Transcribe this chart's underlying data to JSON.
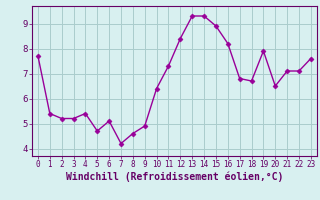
{
  "x": [
    0,
    1,
    2,
    3,
    4,
    5,
    6,
    7,
    8,
    9,
    10,
    11,
    12,
    13,
    14,
    15,
    16,
    17,
    18,
    19,
    20,
    21,
    22,
    23
  ],
  "y": [
    7.7,
    5.4,
    5.2,
    5.2,
    5.4,
    4.7,
    5.1,
    4.2,
    4.6,
    4.9,
    6.4,
    7.3,
    8.4,
    9.3,
    9.3,
    8.9,
    8.2,
    6.8,
    6.7,
    7.9,
    6.5,
    7.1,
    7.1,
    7.6
  ],
  "line_color": "#990099",
  "marker": "D",
  "marker_size": 2.5,
  "bg_color": "#d8f0f0",
  "grid_color": "#aacccc",
  "xlabel": "Windchill (Refroidissement éolien,°C)",
  "xlabel_color": "#660066",
  "xlabel_fontsize": 7,
  "ylabel_ticks": [
    4,
    5,
    6,
    7,
    8,
    9
  ],
  "xtick_labels": [
    "0",
    "1",
    "2",
    "3",
    "4",
    "5",
    "6",
    "7",
    "8",
    "9",
    "10",
    "11",
    "12",
    "13",
    "14",
    "15",
    "16",
    "17",
    "18",
    "19",
    "20",
    "21",
    "22",
    "23"
  ],
  "xtick_fontsize": 5.5,
  "ytick_fontsize": 6.5,
  "ylim": [
    3.7,
    9.7
  ],
  "xlim": [
    -0.5,
    23.5
  ],
  "spine_color": "#660066",
  "line_width": 1.0
}
